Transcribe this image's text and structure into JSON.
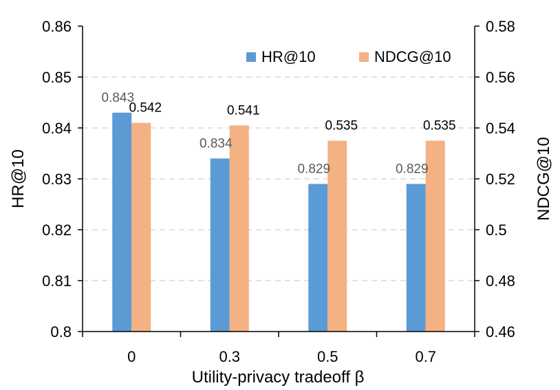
{
  "chart_data": {
    "type": "bar",
    "categories": [
      "0",
      "0.3",
      "0.5",
      "0.7"
    ],
    "xlabel": "Utility-privacy tradeoff β",
    "ylabel_left": "HR@10",
    "ylabel_right": "NDCG@10",
    "ylim_left": [
      0.8,
      0.86
    ],
    "ylim_right": [
      0.46,
      0.58
    ],
    "yticks_left": [
      "0.8",
      "0.81",
      "0.82",
      "0.83",
      "0.84",
      "0.85",
      "0.86"
    ],
    "yticks_right": [
      "0.46",
      "0.48",
      "0.5",
      "0.52",
      "0.54",
      "0.56",
      "0.58"
    ],
    "grid": true,
    "legend_position": "top-right",
    "series": [
      {
        "name": "HR@10",
        "axis": "left",
        "color": "#5b9bd5",
        "values": [
          0.843,
          0.834,
          0.829,
          0.829
        ],
        "labels": [
          "0.843",
          "0.834",
          "0.829",
          "0.829"
        ]
      },
      {
        "name": "NDCG@10",
        "axis": "right",
        "color": "#f4b183",
        "values": [
          0.542,
          0.541,
          0.535,
          0.535
        ],
        "labels": [
          "0.542",
          "0.541",
          "0.535",
          "0.535"
        ]
      }
    ]
  }
}
